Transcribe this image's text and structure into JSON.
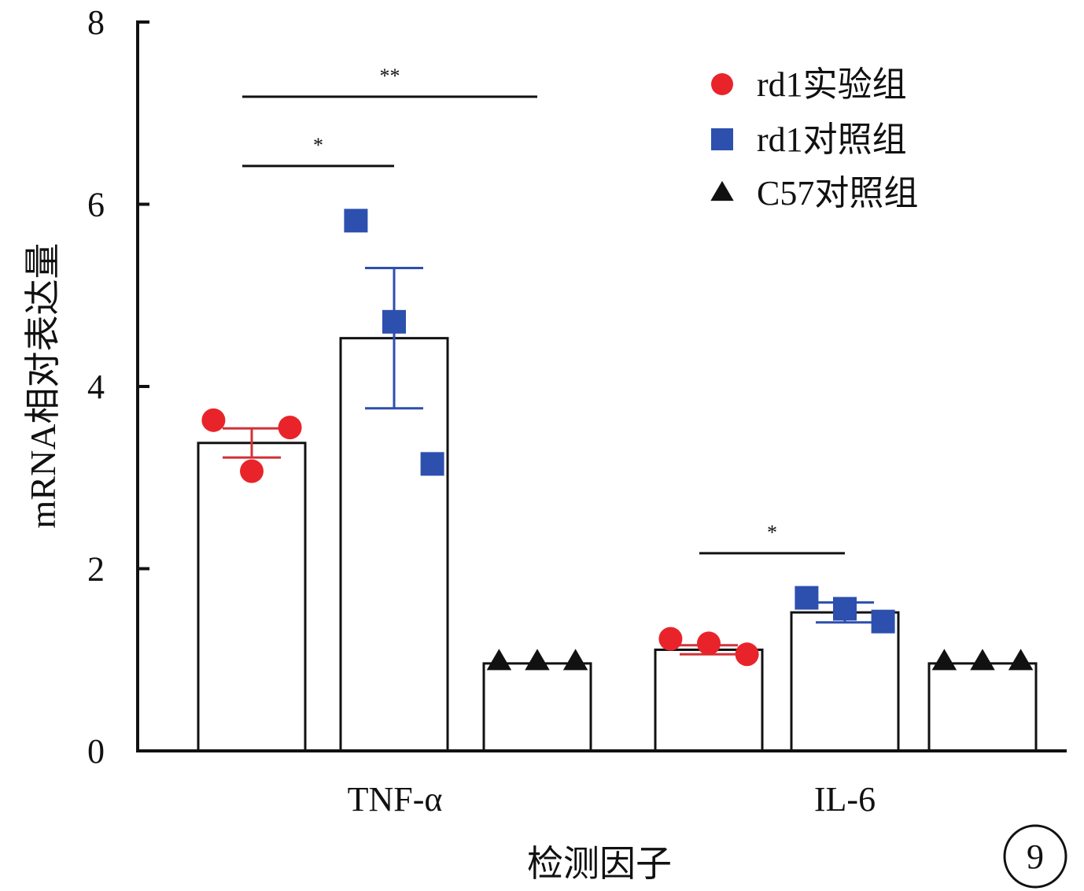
{
  "chart_data": {
    "type": "bar",
    "xlabel": "检测因子",
    "ylabel": "mRNA相对表达量",
    "ylim": [
      0,
      8
    ],
    "yticks": [
      0,
      2,
      4,
      6,
      8
    ],
    "categories": [
      "TNF-α",
      "IL-6"
    ],
    "series": [
      {
        "name": "rd1实验组",
        "marker": "circle",
        "color": "#e8242a",
        "errorColor": "#d23238",
        "values": [
          3.38,
          1.11
        ],
        "errors": [
          0.16,
          0.05
        ],
        "points": [
          [
            3.63,
            3.07,
            3.55
          ],
          [
            1.23,
            1.18,
            1.06
          ]
        ]
      },
      {
        "name": "rd1对照组",
        "marker": "square",
        "color": "#2d4fae",
        "errorColor": "#2d4fae",
        "values": [
          4.53,
          1.52
        ],
        "errors": [
          0.77,
          0.11
        ],
        "points": [
          [
            5.82,
            4.71,
            3.15
          ],
          [
            1.68,
            1.56,
            1.42
          ]
        ]
      },
      {
        "name": "C57对照组",
        "marker": "triangle",
        "color": "#111111",
        "errorColor": "#111111",
        "values": [
          0.96,
          0.96
        ],
        "errors": [
          0,
          0
        ],
        "points": [
          [
            0.98,
            0.98,
            0.98
          ],
          [
            0.98,
            0.98,
            0.98
          ]
        ]
      }
    ],
    "significance": [
      {
        "category": 0,
        "from": 0,
        "to": 2,
        "y": 7.18,
        "label": "**"
      },
      {
        "category": 0,
        "from": 0,
        "to": 1,
        "y": 6.42,
        "label": "*"
      },
      {
        "category": 1,
        "from": 0,
        "to": 1,
        "y": 2.17,
        "label": "*"
      }
    ],
    "legend_position": "top-right",
    "panel_label": "9",
    "grid": false
  }
}
